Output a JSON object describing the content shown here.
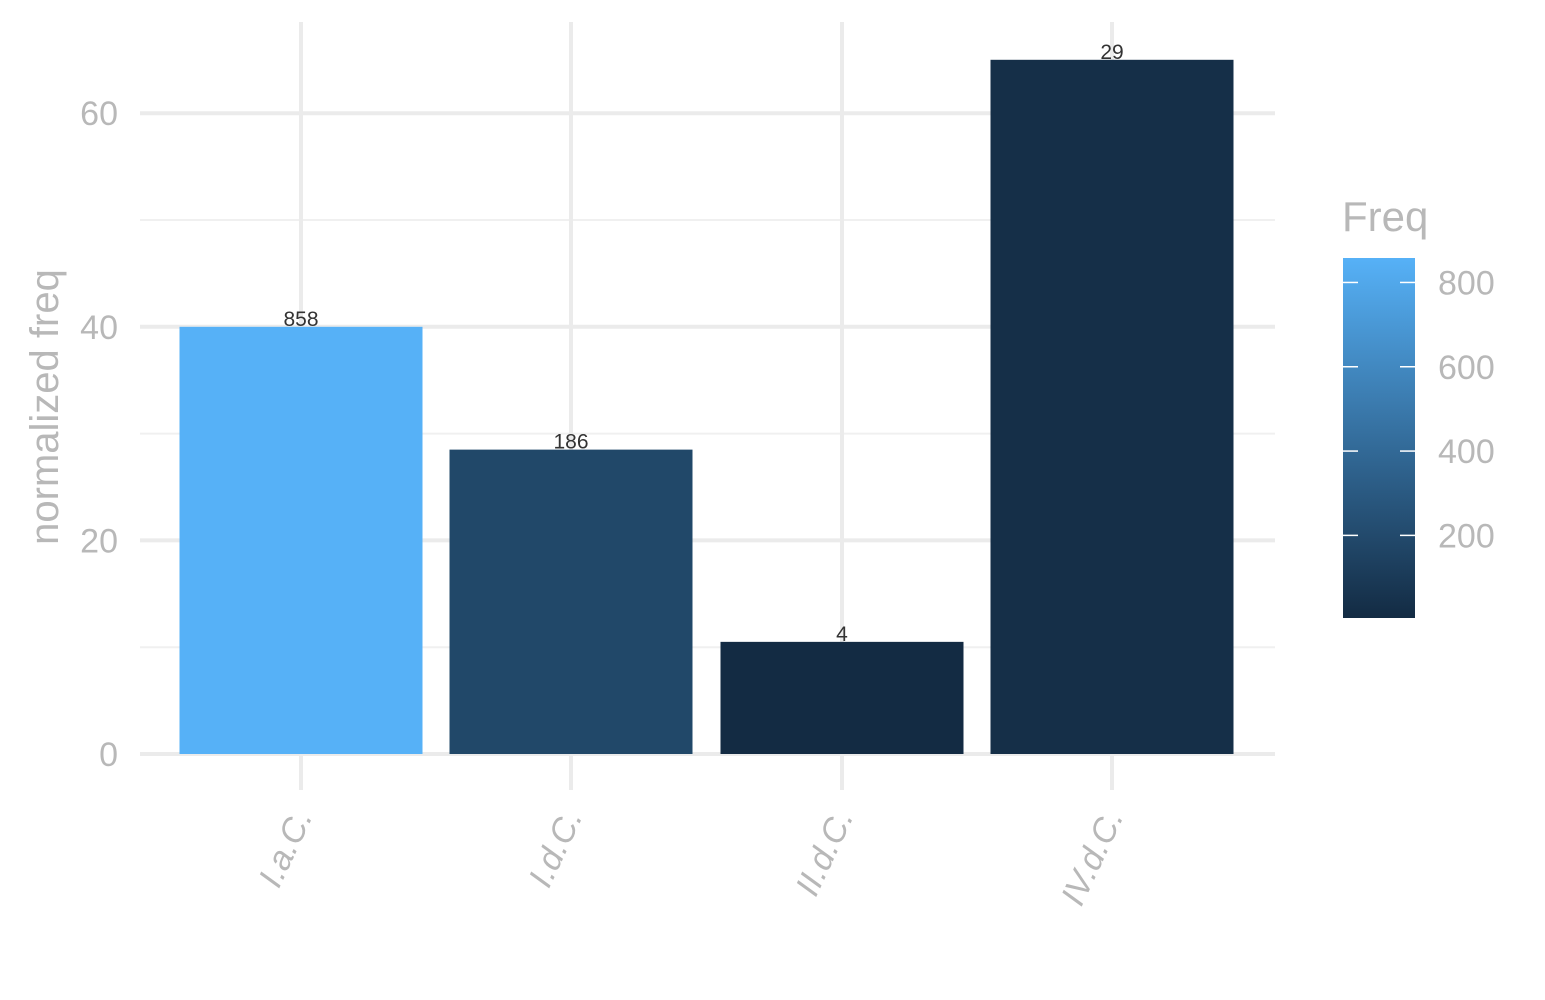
{
  "chart_data": {
    "type": "bar",
    "categories": [
      "I.a.C.",
      "I.d.C.",
      "II.d.C.",
      "IV.d.C."
    ],
    "values": [
      40,
      28.5,
      10.5,
      65
    ],
    "bar_labels": [
      "858",
      "186",
      "4",
      "29"
    ],
    "freq": [
      858,
      186,
      4,
      29
    ],
    "ylabel": "normalized freq",
    "xlabel": "",
    "ylim": [
      0,
      68
    ],
    "yticks": [
      0,
      20,
      40,
      60
    ],
    "grid": true,
    "legend": {
      "title": "Freq",
      "position": "right",
      "type": "colorbar",
      "range": [
        4,
        858
      ],
      "ticks": [
        200,
        400,
        600,
        800
      ],
      "tick_labels": [
        "200",
        "400",
        "600",
        "800"
      ],
      "color_low": "#132b43",
      "color_high": "#56b1f7"
    }
  }
}
